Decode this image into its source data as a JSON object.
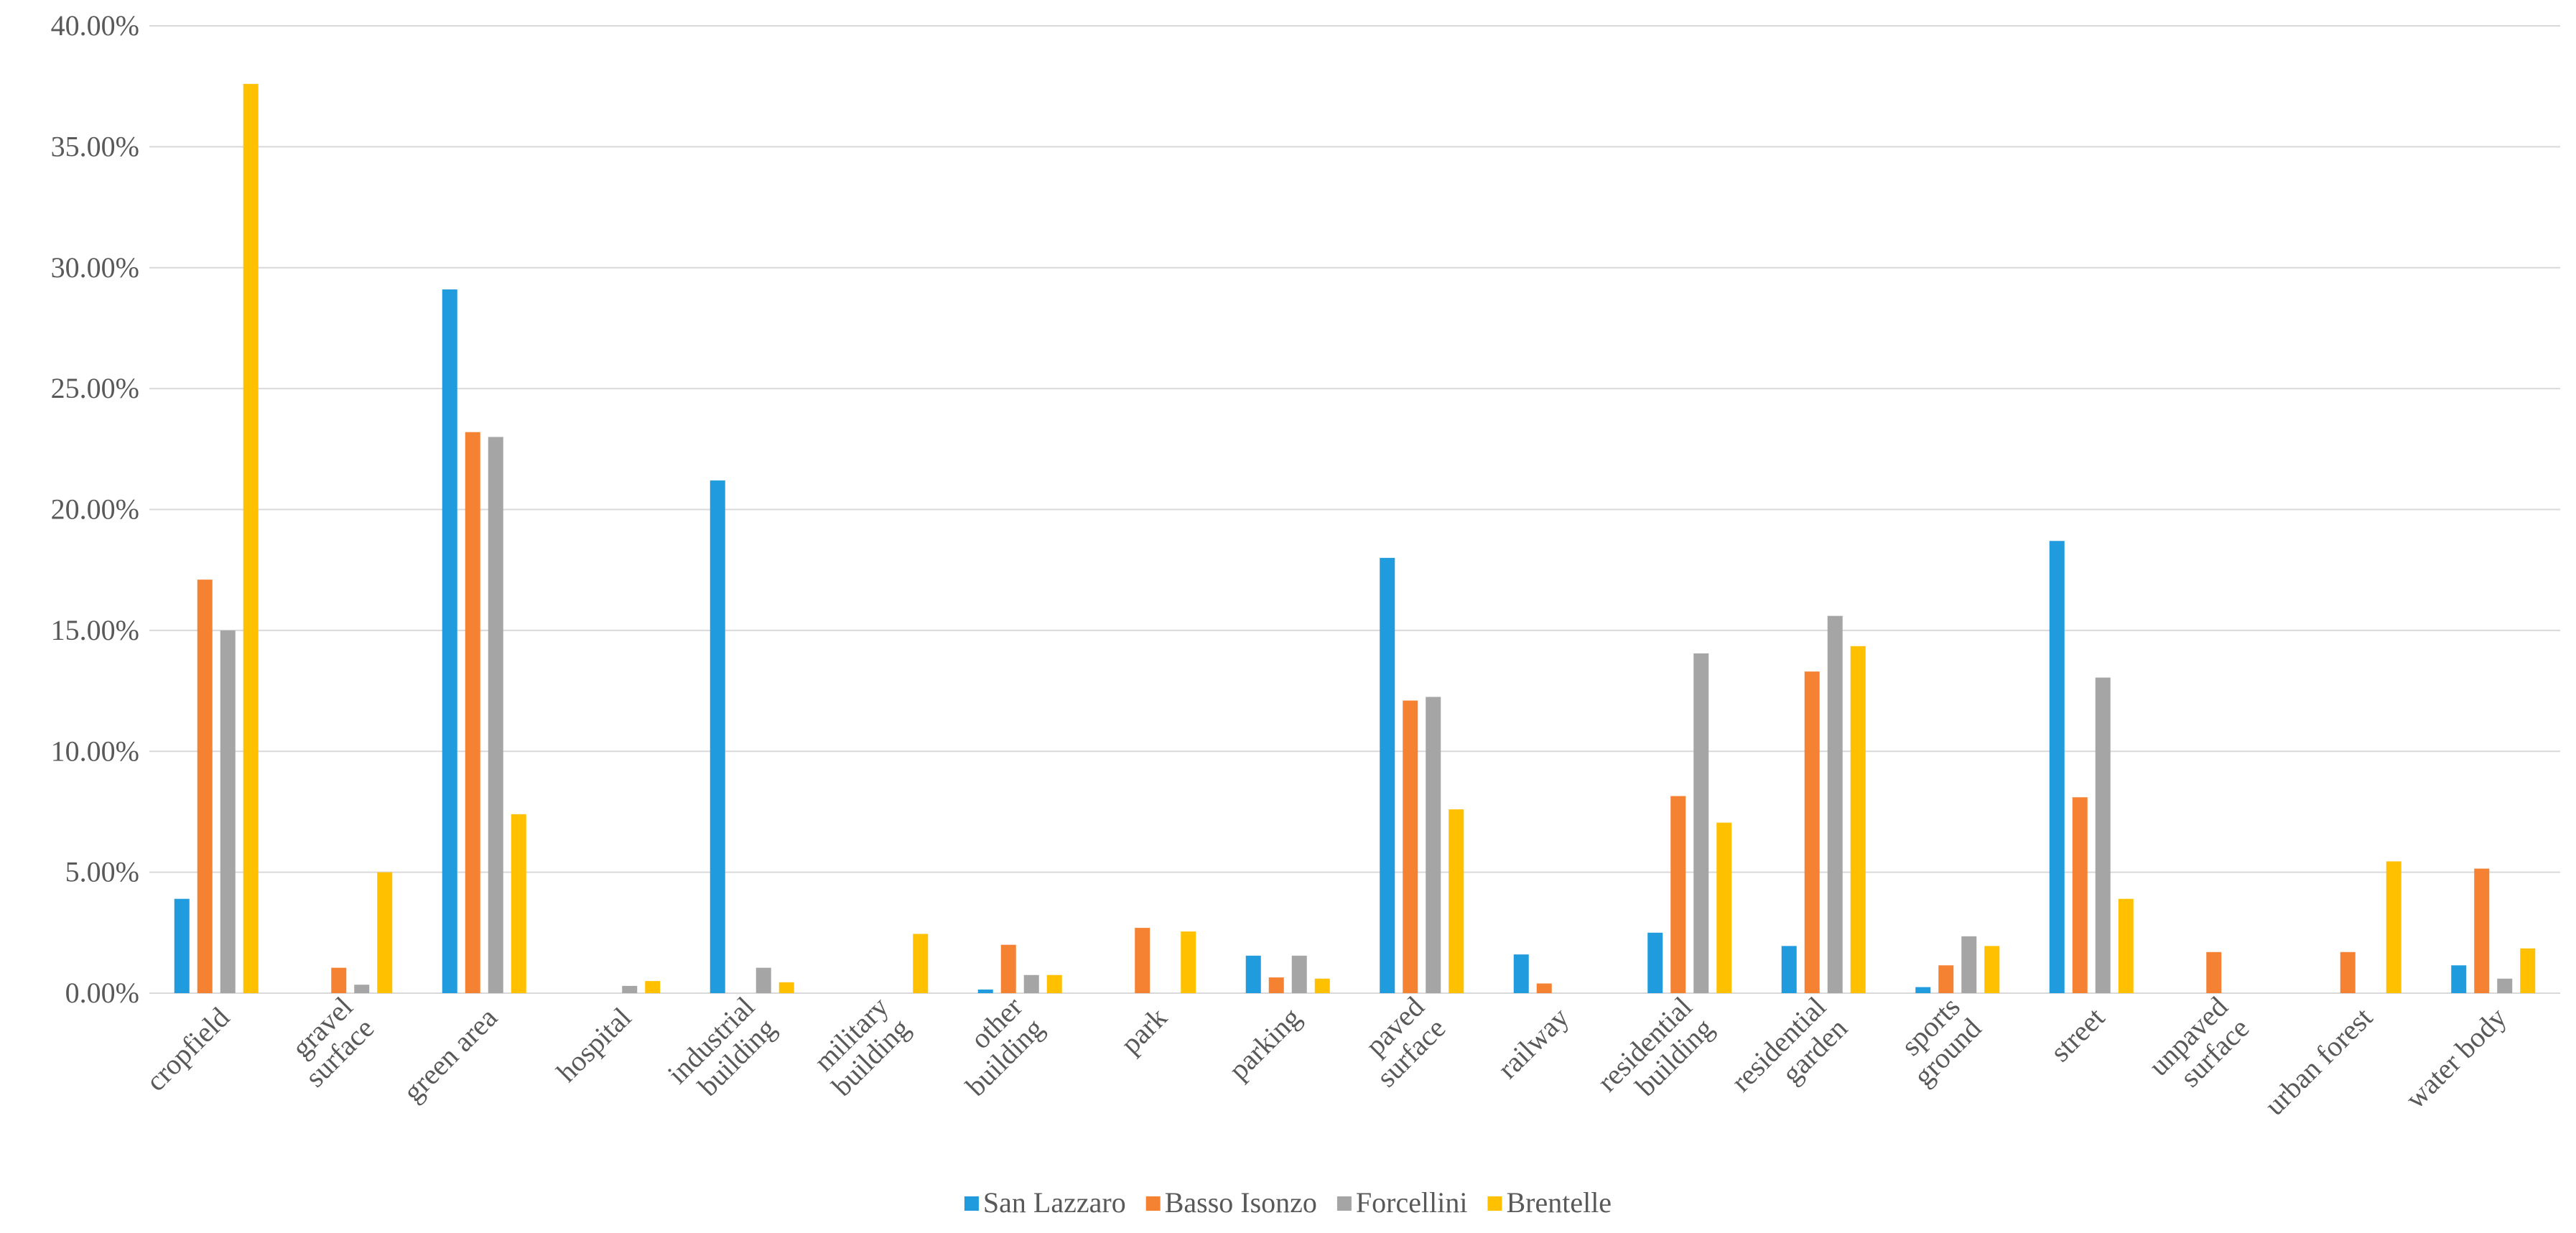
{
  "chart_data": {
    "type": "bar",
    "title": "",
    "xlabel": "",
    "ylabel": "",
    "ylim": [
      0,
      40
    ],
    "y_ticks": [
      0,
      5,
      10,
      15,
      20,
      25,
      30,
      35,
      40
    ],
    "y_tick_labels": [
      "0.00%",
      "5.00%",
      "10.00%",
      "15.00%",
      "20.00%",
      "25.00%",
      "30.00%",
      "35.00%",
      "40.00%"
    ],
    "grid": true,
    "legend_position": "bottom",
    "categories": [
      [
        "cropfield"
      ],
      [
        "gravel",
        "surface"
      ],
      [
        "green area"
      ],
      [
        "hospital"
      ],
      [
        "industrial",
        "building"
      ],
      [
        "military",
        "building"
      ],
      [
        "other",
        "building"
      ],
      [
        "park"
      ],
      [
        "parking"
      ],
      [
        "paved",
        "surface"
      ],
      [
        "railway"
      ],
      [
        "residential",
        "building"
      ],
      [
        "residential",
        "garden"
      ],
      [
        "sports",
        "ground"
      ],
      [
        "street"
      ],
      [
        "unpaved",
        "surface"
      ],
      [
        "urban forest"
      ],
      [
        "water body"
      ]
    ],
    "series": [
      {
        "name": "San Lazzaro",
        "color": "#1f9bde",
        "values": [
          3.9,
          0,
          29.1,
          0,
          21.2,
          0,
          0.15,
          0,
          1.55,
          18.0,
          1.6,
          2.5,
          1.95,
          0.25,
          18.7,
          0,
          0,
          1.15
        ]
      },
      {
        "name": "Basso Isonzo",
        "color": "#f58133",
        "values": [
          17.1,
          1.05,
          23.2,
          0,
          0,
          0,
          2.0,
          2.7,
          0.65,
          12.1,
          0.4,
          8.15,
          13.3,
          1.15,
          8.1,
          1.7,
          1.7,
          5.15
        ]
      },
      {
        "name": "Forcellini",
        "color": "#a5a5a5",
        "values": [
          15.0,
          0.35,
          23.0,
          0.3,
          1.05,
          0,
          0.75,
          0,
          1.55,
          12.25,
          0,
          14.05,
          15.6,
          2.35,
          13.05,
          0,
          0,
          0.6
        ]
      },
      {
        "name": "Brentelle",
        "color": "#ffc000",
        "values": [
          37.6,
          5.0,
          7.4,
          0.5,
          0.45,
          2.45,
          0.75,
          2.55,
          0.6,
          7.6,
          0,
          7.05,
          14.35,
          1.95,
          3.9,
          0,
          5.45,
          1.85
        ]
      }
    ]
  }
}
